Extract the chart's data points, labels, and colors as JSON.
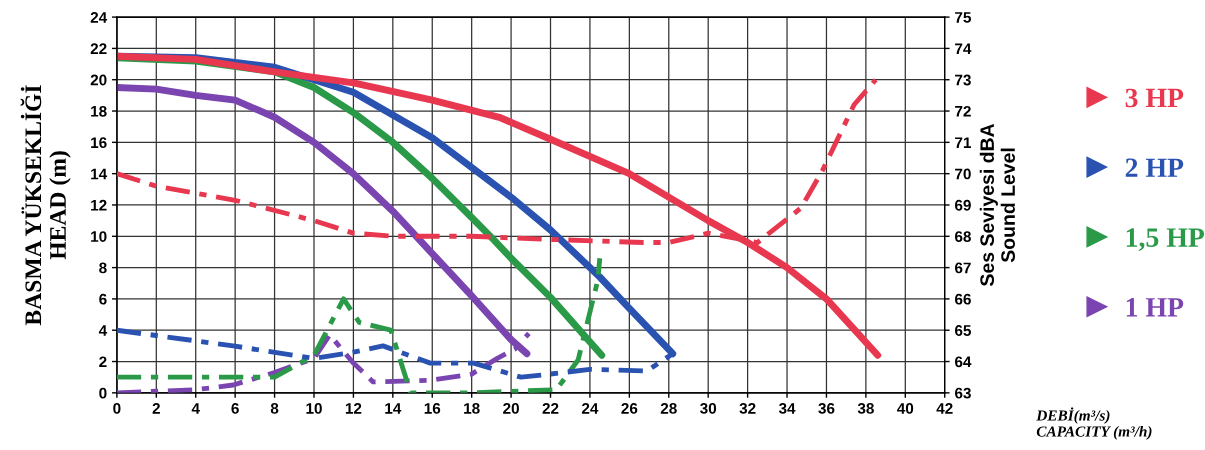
{
  "chart_data": {
    "type": "line",
    "xlabel": "DEBİ(m³/s)\nCAPACITY (m³/h)",
    "ylabel": "BASMA YÜKSEKLİĞİ\nHEAD (m)",
    "y2label": "Ses Seviyesi dBA\nSound Level",
    "xlim": [
      0,
      42
    ],
    "xticks": [
      0,
      2,
      4,
      6,
      8,
      10,
      12,
      14,
      16,
      18,
      20,
      22,
      24,
      26,
      28,
      30,
      32,
      34,
      36,
      38,
      40,
      42
    ],
    "ylim": [
      0,
      24
    ],
    "yticks": [
      0,
      2,
      4,
      6,
      8,
      10,
      12,
      14,
      16,
      18,
      20,
      22,
      24
    ],
    "y2lim": [
      63,
      75
    ],
    "y2ticks": [
      63,
      64,
      65,
      66,
      67,
      68,
      69,
      70,
      71,
      72,
      73,
      74,
      75
    ],
    "grid": true,
    "legend": "right",
    "marker": "none",
    "series": [
      {
        "name": "3 HP",
        "color": "#e8384f",
        "line_style": "solid",
        "x": [
          0,
          4,
          8,
          12,
          16,
          19.4,
          22,
          26,
          30,
          32,
          34,
          36,
          38.6
        ],
        "values": [
          21.5,
          21.3,
          20.5,
          19.8,
          18.7,
          17.6,
          16.2,
          14.0,
          11.0,
          9.6,
          8.0,
          6.0,
          2.4
        ]
      },
      {
        "name": "2 HP",
        "color": "#2a52b0",
        "line_style": "solid",
        "x": [
          0,
          4,
          8,
          12,
          16,
          20,
          22,
          24.5,
          26,
          28.2
        ],
        "values": [
          21.5,
          21.4,
          20.8,
          19.2,
          16.3,
          12.5,
          10.4,
          7.4,
          5.4,
          2.5
        ]
      },
      {
        "name": "1,5 HP",
        "color": "#2a9a48",
        "line_style": "solid",
        "x": [
          0,
          4,
          8,
          10,
          12,
          14,
          16,
          18,
          19.1,
          20,
          22,
          24.6
        ],
        "values": [
          21.4,
          21.2,
          20.5,
          19.5,
          17.9,
          16.0,
          13.7,
          11.2,
          9.8,
          8.6,
          6.1,
          2.4
        ]
      },
      {
        "name": "1 HP",
        "color": "#7a45b0",
        "line_style": "solid",
        "x": [
          0,
          2,
          4,
          6,
          8,
          10,
          12,
          14,
          16,
          18,
          20,
          20.8
        ],
        "values": [
          19.5,
          19.4,
          19.0,
          18.7,
          17.6,
          16.0,
          14.0,
          11.6,
          8.9,
          6.2,
          3.4,
          2.5
        ]
      },
      {
        "color": "#e8384f",
        "axis": "y2",
        "line_style": "dashdot",
        "x": [
          0,
          2,
          6,
          10,
          12,
          14,
          18,
          22,
          26.7,
          28,
          30,
          32.5,
          34.7,
          35.8,
          37.4,
          38.5
        ],
        "values": [
          70,
          69.6,
          69.15,
          68.5,
          68.1,
          68.0,
          68.0,
          67.9,
          67.8,
          67.8,
          68.1,
          67.8,
          68.9,
          70.1,
          72.2,
          73.0
        ]
      },
      {
        "color": "#2a52b0",
        "axis": "y2",
        "line_style": "dashdot",
        "x": [
          0,
          5.9,
          10,
          12,
          13.5,
          15.9,
          18.1,
          20.5,
          22,
          24,
          26.9,
          28.2
        ],
        "values": [
          65,
          64.5,
          64.1,
          64.3,
          64.5,
          63.95,
          63.95,
          63.5,
          63.6,
          63.75,
          63.7,
          64.25
        ]
      },
      {
        "color": "#2a9a48",
        "axis": "y2",
        "line_style": "dashdot",
        "x": [
          0,
          8,
          10,
          11.5,
          12.3,
          13.9,
          14.9,
          18,
          22.3,
          23.4,
          24.4,
          24.5
        ],
        "values": [
          63.5,
          63.5,
          64.2,
          66.0,
          65.25,
          65.0,
          63.0,
          63.0,
          63.1,
          64.05,
          66.6,
          67.3
        ]
      },
      {
        "color": "#7a45b0",
        "axis": "y2",
        "line_style": "dashdot",
        "x": [
          0,
          4,
          5.9,
          8,
          10,
          10.8,
          12,
          13,
          15.9,
          18,
          19.3,
          20.2,
          20.9
        ],
        "values": [
          63.0,
          63.1,
          63.25,
          63.65,
          64.1,
          64.85,
          63.95,
          63.35,
          63.4,
          63.6,
          64.1,
          64.4,
          64.9
        ]
      }
    ]
  }
}
